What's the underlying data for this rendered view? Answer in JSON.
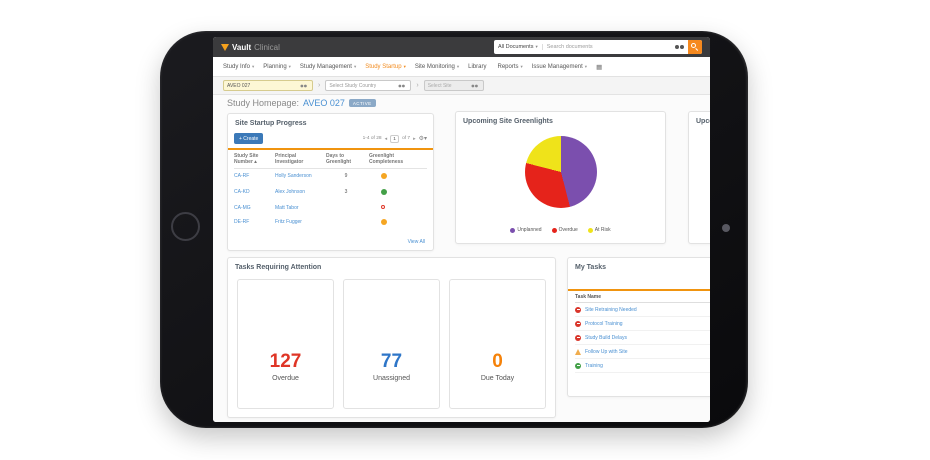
{
  "topbar": {
    "logo_primary": "Vault",
    "logo_secondary": "Clinical",
    "search_scope": "All Documents",
    "search_placeholder": "Search documents"
  },
  "nav": {
    "items": [
      {
        "label": "Study Info",
        "caret": "▾",
        "active": false
      },
      {
        "label": "Planning",
        "caret": "▾",
        "active": false
      },
      {
        "label": "Study Management",
        "caret": "▾",
        "active": false
      },
      {
        "label": "Study Startup",
        "caret": "▾",
        "active": true
      },
      {
        "label": "Site Monitoring",
        "caret": "▾",
        "active": false
      },
      {
        "label": "Library",
        "caret": "",
        "active": false
      },
      {
        "label": "Reports",
        "caret": "▾",
        "active": false
      },
      {
        "label": "Issue Management",
        "caret": "▾",
        "active": false
      }
    ]
  },
  "breadcrumb": {
    "study_value": "AVEO 027",
    "country_placeholder": "Select Study Country",
    "site_placeholder": "Select Site"
  },
  "page": {
    "title_prefix": "Study Homepage:",
    "title_study": "AVEO 027",
    "status_badge": "ACTIVE"
  },
  "site_startup": {
    "title": "Site Startup Progress",
    "create_label": "+ Create",
    "pagination": {
      "range": "1-4 of 28",
      "prev": "◂",
      "page": "1",
      "pages": "of 7",
      "next": "▸"
    },
    "sort_indicator": "▴",
    "columns": [
      "Study Site Number",
      "Principal Investigator",
      "Days to Greenlight",
      "Greenlight Completeness"
    ],
    "rows": [
      {
        "site": "CA-RF",
        "pi": "Holly Sanderson",
        "days": "9",
        "status": "amber"
      },
      {
        "site": "CA-KD",
        "pi": "Alex Johnson",
        "days": "3",
        "status": "green"
      },
      {
        "site": "CA-MG",
        "pi": "Matt Tabor",
        "days": "",
        "status": "red-outline"
      },
      {
        "site": "DE-RF",
        "pi": "Fritz Fugger",
        "days": "",
        "status": "amber"
      }
    ],
    "view_all": "View All"
  },
  "greenlights": {
    "title": "Upcoming Site Greenlights"
  },
  "clipped_panel": {
    "title": "Upcoming"
  },
  "chart_data": {
    "type": "pie",
    "title": "Upcoming Site Greenlights",
    "labels": [
      "Unplanned",
      "Overdue",
      "At Risk"
    ],
    "values": [
      46,
      33,
      21
    ],
    "unit": "percent",
    "colors": [
      "#7b4fae",
      "#e5231b",
      "#efe31a"
    ],
    "legend_position": "bottom",
    "start_angle_deg": 0
  },
  "tasks_attention": {
    "title": "Tasks Requiring Attention",
    "stats": [
      {
        "value": "127",
        "label": "Overdue",
        "color": "#df3526"
      },
      {
        "value": "77",
        "label": "Unassigned",
        "color": "#2e76c8"
      },
      {
        "value": "0",
        "label": "Due Today",
        "color": "#f5820a"
      }
    ]
  },
  "my_tasks": {
    "title": "My Tasks",
    "column_header": "Task Name",
    "items": [
      {
        "label": "Site Retraining Needed",
        "icon": "overdue"
      },
      {
        "label": "Protocol Training",
        "icon": "overdue"
      },
      {
        "label": "Study Build Delays",
        "icon": "overdue"
      },
      {
        "label": "Follow Up with Site",
        "icon": "warning"
      },
      {
        "label": "Training",
        "icon": "complete"
      }
    ]
  },
  "colors": {
    "accent_orange": "#f0940f",
    "nav_active_orange": "#f28b1e",
    "link_blue": "#4a90d2",
    "topbar_bg": "#3b3b3d",
    "status_amber": "#f5a623",
    "status_green": "#43a047",
    "status_red": "#df3526"
  }
}
